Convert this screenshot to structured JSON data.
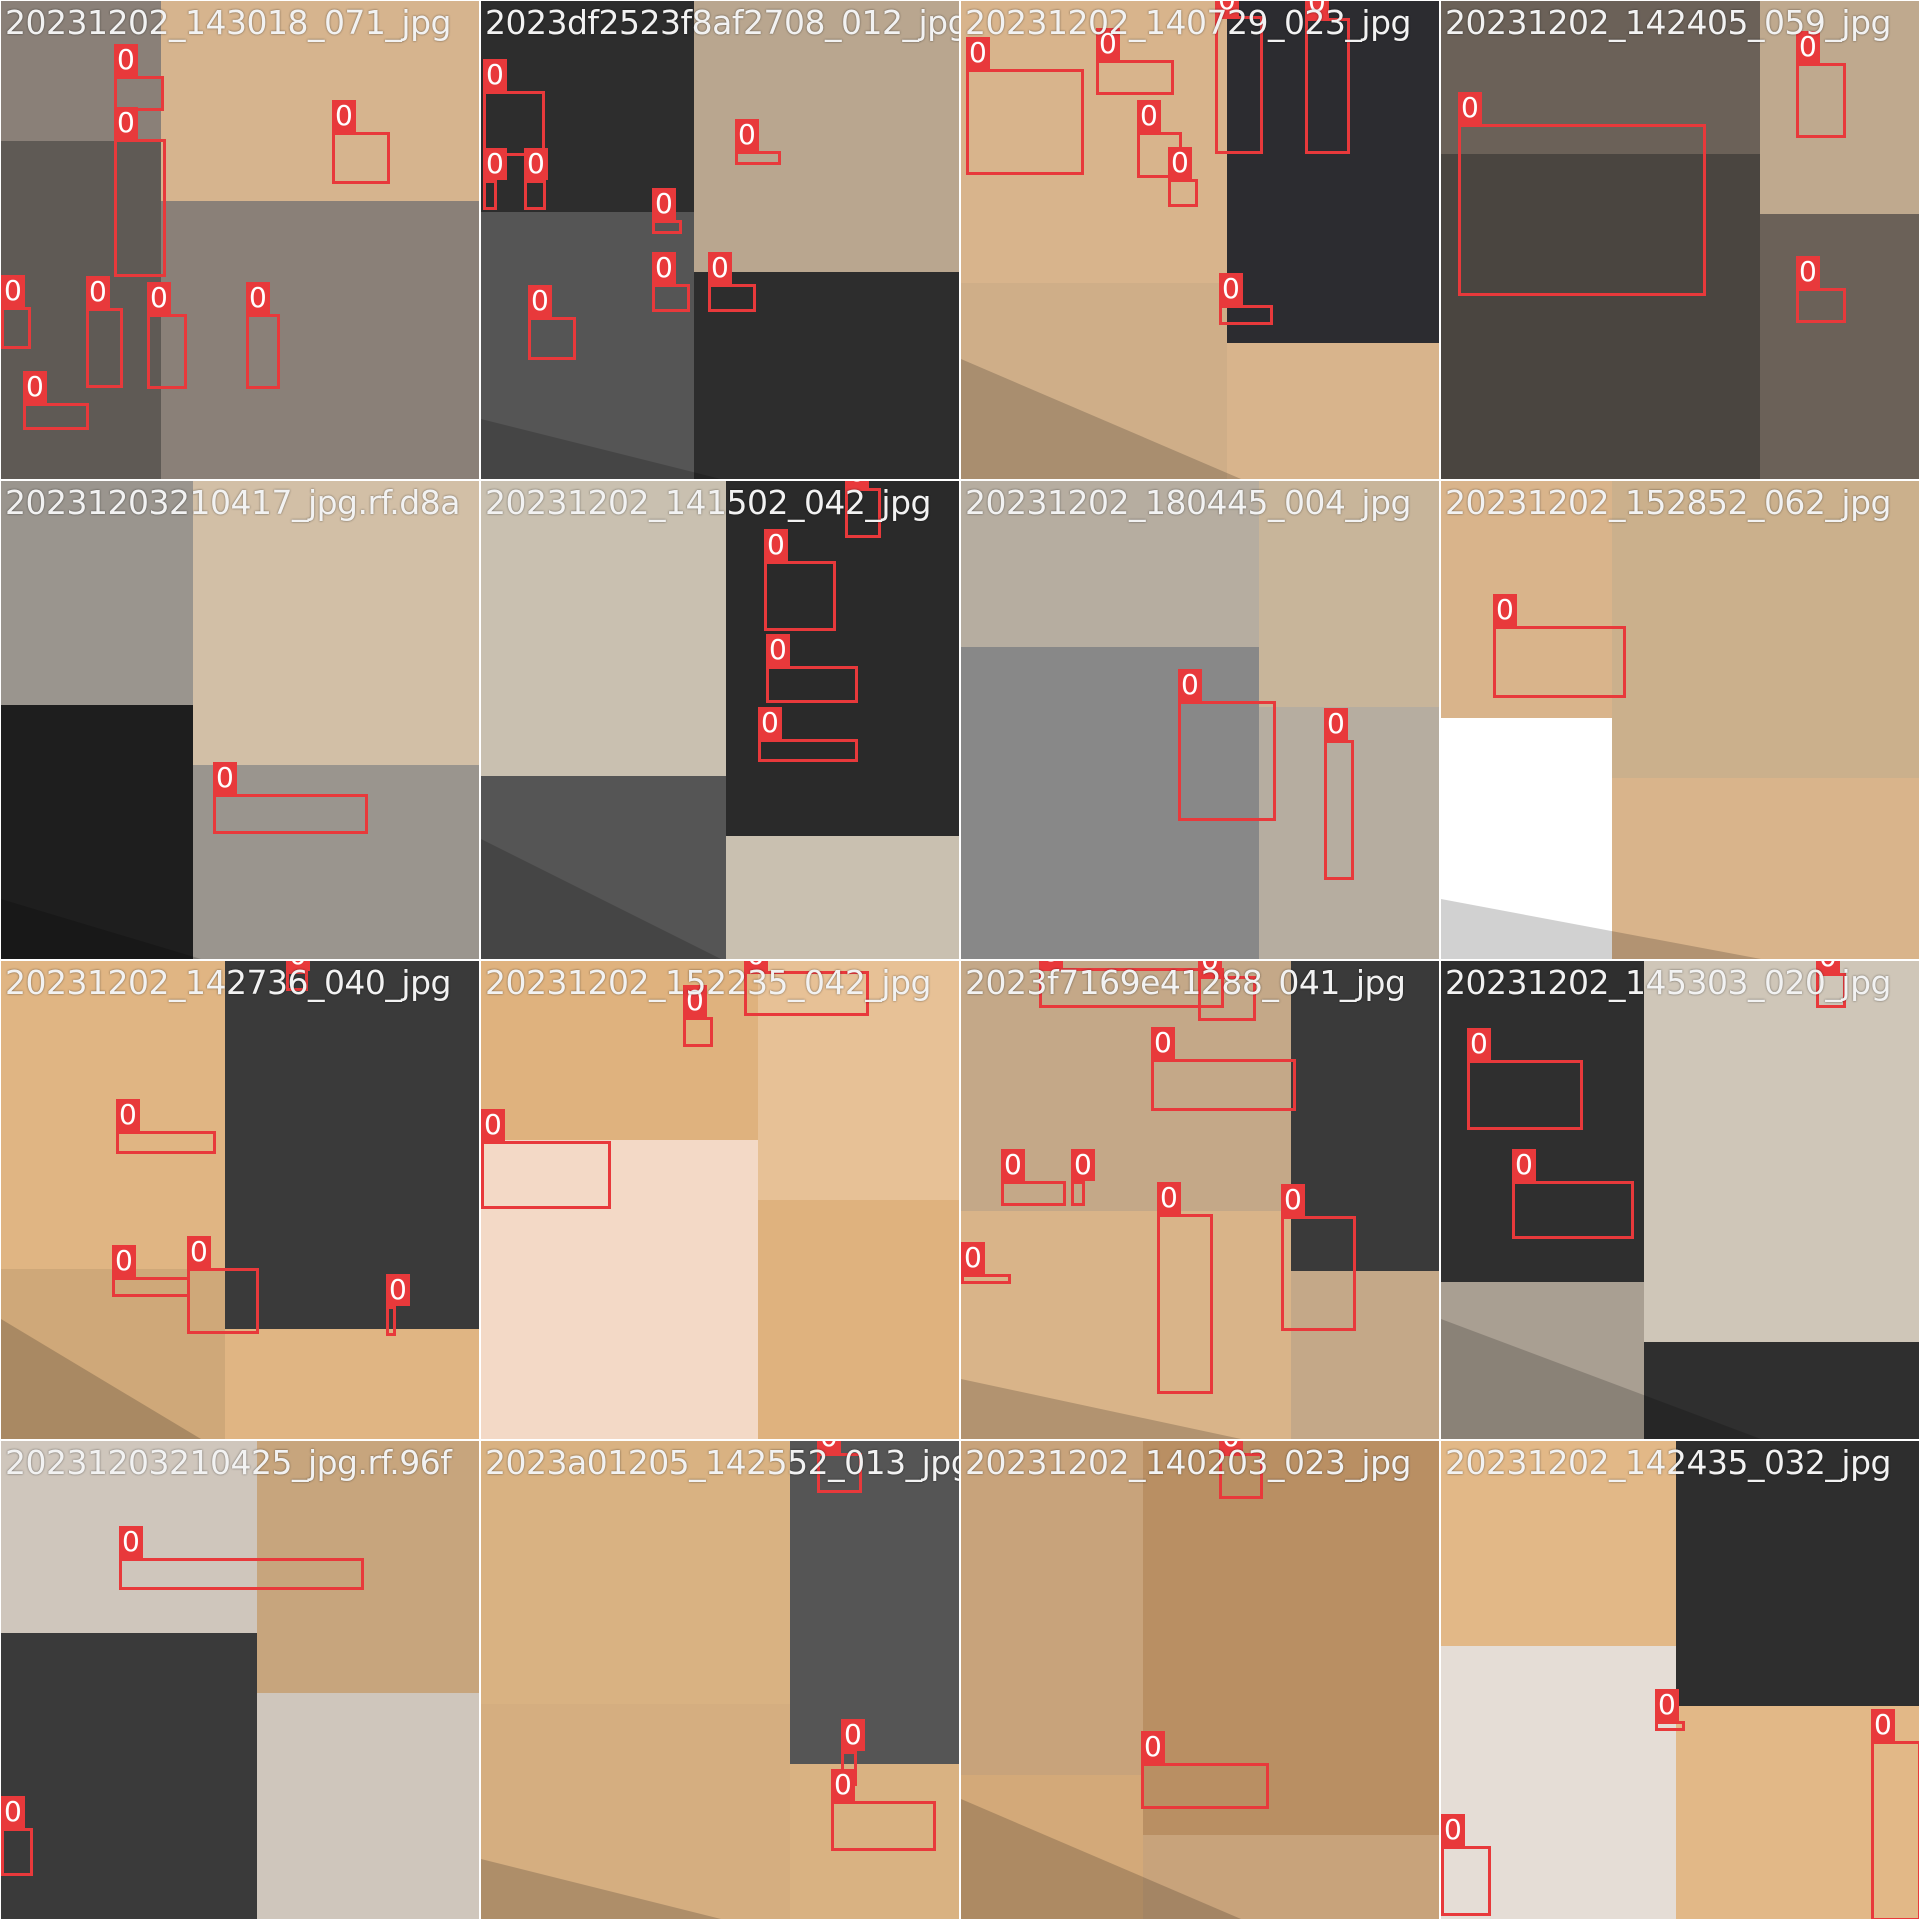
{
  "detection_class_label": "0",
  "colors": {
    "box": "#e8393b",
    "label_text": "#ffffff",
    "filename_text": "#f2f2f2",
    "pad": "#555555"
  },
  "tiles": [
    {
      "filename": "20231202_143018_071_jpg",
      "bg": [
        "#8a8078",
        "#d6b48e",
        "#5f5a55"
      ]
    },
    {
      "filename": "2023df2523f8af2708_012_jpg",
      "bg": [
        "#2d2d2d",
        "#b9a68f",
        "#555555"
      ]
    },
    {
      "filename": "20231202_140729_023_jpg",
      "bg": [
        "#d8b48c",
        "#2c2c30",
        "#cfae88"
      ]
    },
    {
      "filename": "20231202_142405_059_jpg",
      "bg": [
        "#6b6158",
        "#bfa98e",
        "#4a4540"
      ]
    },
    {
      "filename": "20231203210417_jpg.rf.d8a",
      "bg": [
        "#9a958e",
        "#d2bfa6",
        "#1e1e1e"
      ]
    },
    {
      "filename": "20231202_141502_042_jpg",
      "bg": [
        "#c9c0b0",
        "#2a2a2a",
        "#555555"
      ]
    },
    {
      "filename": "20231202_180445_004_jpg",
      "bg": [
        "#b6ada0",
        "#c8b59a",
        "#888888"
      ]
    },
    {
      "filename": "20231202_152852_062_jpg",
      "bg": [
        "#d9b48b",
        "#cbb08c",
        "#ffffff"
      ]
    },
    {
      "filename": "20231202_142736_040_jpg",
      "bg": [
        "#e0b583",
        "#3a3a3a",
        "#cfa879"
      ]
    },
    {
      "filename": "20231202_152235_042_jpg",
      "bg": [
        "#dfb27e",
        "#e7c196",
        "#f3d9c6"
      ]
    },
    {
      "filename": "2023f7169e41288_041_jpg",
      "bg": [
        "#c4a888",
        "#3a3a3a",
        "#d9b489"
      ]
    },
    {
      "filename": "20231202_145303_020_jpg",
      "bg": [
        "#2f2f2f",
        "#cfc6b8",
        "#a99f92"
      ]
    },
    {
      "filename": "20231203210425_jpg.rf.96f",
      "bg": [
        "#cfc6bc",
        "#c7a57d",
        "#3a3a3a"
      ]
    },
    {
      "filename": "2023a01205_142552_013_jpg",
      "bg": [
        "#d9b282",
        "#555555",
        "#d5ae80"
      ]
    },
    {
      "filename": "20231202_140203_023_jpg",
      "bg": [
        "#c8a37b",
        "#b98f63",
        "#d3a979"
      ]
    },
    {
      "filename": "20231202_142435_032_jpg",
      "bg": [
        "#e2b887",
        "#2e2e2e",
        "#e5ddd6"
      ]
    }
  ]
}
